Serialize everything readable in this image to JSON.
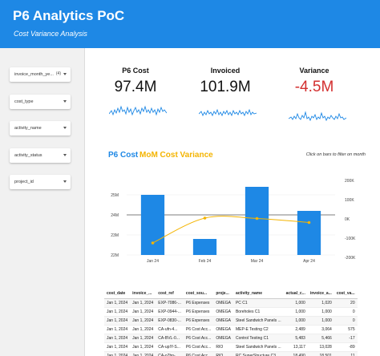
{
  "header": {
    "title": "P6 Analytics PoC",
    "subtitle": "Cost Variance Analysis"
  },
  "filters": [
    {
      "label": "invoice_month_ye...",
      "count": "(4)"
    },
    {
      "label": "cost_type",
      "count": ""
    },
    {
      "label": "activity_name",
      "count": ""
    },
    {
      "label": "activity_status",
      "count": ""
    },
    {
      "label": "project_id",
      "count": ""
    }
  ],
  "kpis": [
    {
      "label": "P6 Cost",
      "value": "97.4M"
    },
    {
      "label": "Invoiced",
      "value": "101.9M"
    },
    {
      "label": "Variance",
      "value": "-4.5M"
    }
  ],
  "colors": {
    "primary": "#1e88e5",
    "accent": "#f4b400",
    "negative": "#d32f2f"
  },
  "chart_header": {
    "legend_main": "P6 Cost",
    "legend_mom": "MoM Cost Variance",
    "hint": "Click on bars to filter on month"
  },
  "chart_data": {
    "type": "bar",
    "categories": [
      "Jan 24",
      "Feb 24",
      "Mar 24",
      "Apr 24"
    ],
    "series": [
      {
        "name": "P6 Cost",
        "type": "bar",
        "axis": "left",
        "values": [
          25.0,
          22.8,
          25.4,
          24.2
        ]
      },
      {
        "name": "MoM Cost Variance",
        "type": "line",
        "axis": "right",
        "values": [
          -700,
          -80,
          -90,
          -190
        ]
      }
    ],
    "ylim_left": [
      22,
      26
    ],
    "yticks_left": [
      "22M",
      "23M",
      "24M",
      "25M"
    ],
    "yticks_left_values": [
      22,
      23,
      24,
      25
    ],
    "ylim_right": [
      -1000,
      1000
    ],
    "yticks_right": [
      "-200K",
      "-100K",
      "0K",
      "100K",
      "200K"
    ],
    "yticks_right_values": [
      -200,
      -100,
      0,
      100,
      200
    ]
  },
  "table": {
    "columns": [
      "cost_date",
      "invoice_...",
      "cost_ref",
      "cost_sou...",
      "proje...",
      "activity_name",
      "actual_c...",
      "invoice_a...",
      "cost_va..."
    ],
    "rows": [
      [
        "Jan 1, 2024",
        "Jan 1, 2024",
        "EXP-7086-...",
        "P6 Expenses",
        "OMEGA",
        "PC C1",
        "1,000",
        "1,020",
        "20"
      ],
      [
        "Jan 1, 2024",
        "Jan 1, 2024",
        "EXP-0944-...",
        "P6 Expenses",
        "OMEGA",
        "Boreholes C1",
        "1,000",
        "1,000",
        "0"
      ],
      [
        "Jan 1, 2024",
        "Jan 1, 2024",
        "EXP-0830-...",
        "P6 Expenses",
        "OMEGA",
        "Steel Sandwich Panels ...",
        "1,000",
        "1,000",
        "0"
      ],
      [
        "Jan 1, 2024",
        "Jan 1, 2024",
        "CA-ufn-4...",
        "P6 Cost Acc...",
        "OMEGA",
        "MEP-E Testing C2",
        "2,489",
        "3,064",
        "575"
      ],
      [
        "Jan 1, 2024",
        "Jan 1, 2024",
        "CA-BVL-0...",
        "P6 Cost Acc...",
        "OMEGA",
        "Control Testing C1",
        "5,483",
        "5,466",
        "-17"
      ],
      [
        "Jan 1, 2024",
        "Jan 1, 2024",
        "CA-upIY-S...",
        "P6 Cost Acc...",
        "RIO",
        "Steel Sandwich Panels ...",
        "13,117",
        "13,028",
        "-89"
      ],
      [
        "Jan 1, 2024",
        "Jan 1, 2024",
        "CA-o7bn-...",
        "P6 Cost Acc...",
        "RIO",
        "RC SuperStructure C3",
        "18,490",
        "18,501",
        "11"
      ]
    ]
  }
}
